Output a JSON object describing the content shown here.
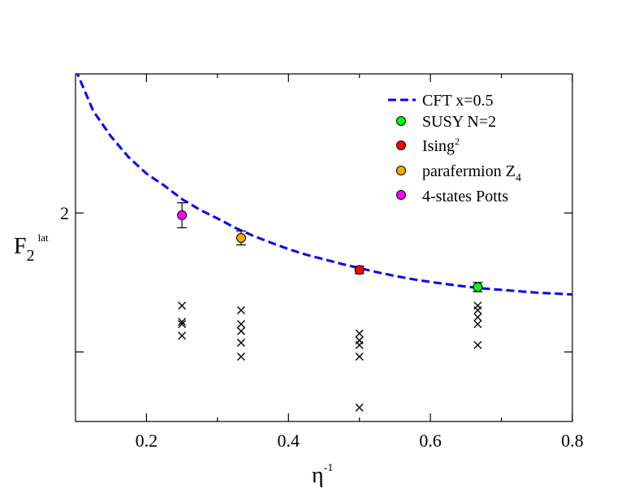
{
  "chart_data": {
    "type": "scatter",
    "xlabel": "η",
    "xlabel_superscript": "-1",
    "ylabel": "F",
    "ylabel_subscript": "2",
    "ylabel_superscript": "lat",
    "xlim": [
      0.1,
      0.8
    ],
    "ylim": [
      1.55,
      2.3
    ],
    "x_ticks": [
      0.2,
      0.4,
      0.6,
      0.8
    ],
    "x_tick_labels": [
      "0.2",
      "0.4",
      "0.6",
      "0.8"
    ],
    "y_ticks": [
      1.7,
      2.0
    ],
    "y_tick_labels": [
      "",
      "2"
    ],
    "curve": {
      "name": "CFT x=0.5",
      "color": "#0000ff",
      "x": [
        0.1,
        0.125,
        0.15,
        0.175,
        0.2,
        0.225,
        0.25,
        0.275,
        0.3,
        0.325,
        0.35,
        0.375,
        0.4,
        0.425,
        0.45,
        0.475,
        0.5,
        0.525,
        0.55,
        0.575,
        0.6,
        0.625,
        0.65,
        0.675,
        0.7,
        0.725,
        0.75,
        0.775,
        0.8
      ],
      "y": [
        2.31,
        2.22,
        2.165,
        2.12,
        2.085,
        2.059,
        2.03,
        2.007,
        1.988,
        1.968,
        1.951,
        1.936,
        1.922,
        1.91,
        1.9,
        1.89,
        1.881,
        1.872,
        1.864,
        1.857,
        1.851,
        1.846,
        1.841,
        1.837,
        1.834,
        1.831,
        1.828,
        1.826,
        1.824
      ]
    },
    "series": [
      {
        "name": "SUSY N=2",
        "color": "#00ff00",
        "x": [
          0.6667
        ],
        "y": [
          1.84
        ],
        "err": [
          0.01
        ]
      },
      {
        "name": "Ising",
        "name_superscript": "2",
        "color": "#ff0000",
        "x": [
          0.5
        ],
        "y": [
          1.877
        ],
        "err": [
          0.008
        ]
      },
      {
        "name": "parafermion Z",
        "name_subscript": "4",
        "color": "#ffa500",
        "x": [
          0.3333
        ],
        "y": [
          1.946
        ],
        "err": [
          0.015
        ]
      },
      {
        "name": "4-states Potts",
        "color": "#ff00ff",
        "x": [
          0.25
        ],
        "y": [
          1.995
        ],
        "err": [
          0.027
        ]
      }
    ],
    "crosses": [
      {
        "x": 0.25,
        "y": [
          1.8,
          1.765,
          1.76,
          1.735
        ]
      },
      {
        "x": 0.3333,
        "y": [
          1.79,
          1.76,
          1.745,
          1.72,
          1.69
        ]
      },
      {
        "x": 0.5,
        "y": [
          1.74,
          1.725,
          1.715,
          1.69,
          1.58
        ]
      },
      {
        "x": 0.6667,
        "y": [
          1.8,
          1.79,
          1.775,
          1.76,
          1.715
        ]
      }
    ]
  }
}
